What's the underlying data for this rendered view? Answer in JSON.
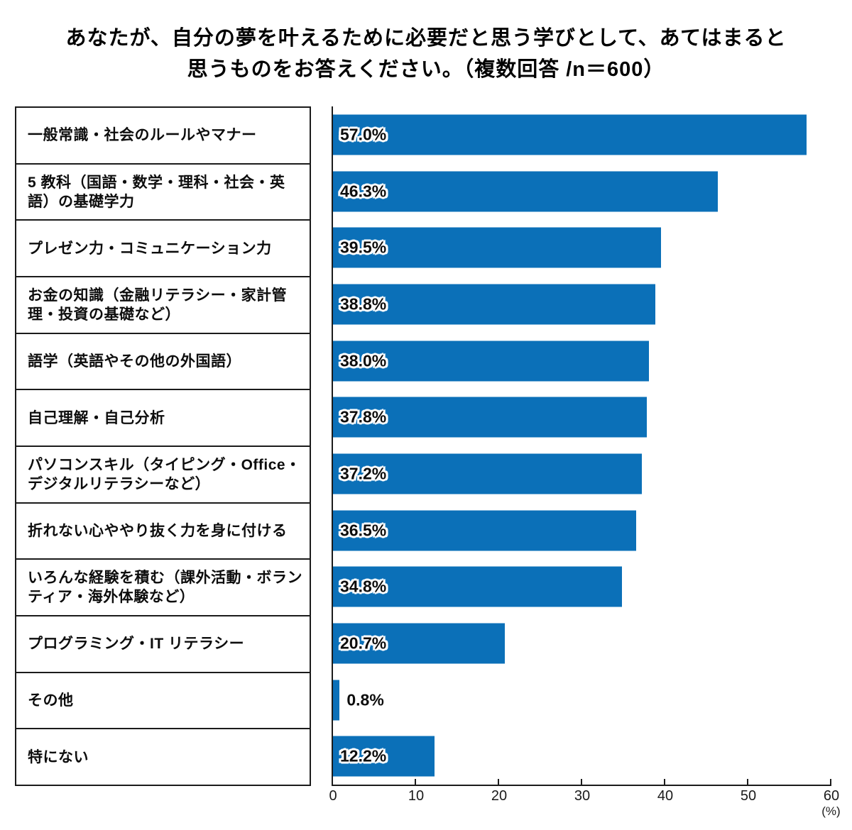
{
  "title": {
    "line1": "あなたが、自分の夢を叶えるために必要だと思う学びとして、あてはまると",
    "line2": "思うものをお答えください。（複数回答 /n＝600）"
  },
  "chart_data": {
    "type": "bar",
    "orientation": "horizontal",
    "title": "あなたが、自分の夢を叶えるために必要だと思う学びとして、あてはまると思うものをお答えください。（複数回答 /n＝600）",
    "sample_note": "複数回答 /n＝600",
    "categories": [
      "一般常識・社会のルールやマナー",
      "5 教科（国語・数学・理科・社会・英語）の基礎学力",
      "プレゼン力・コミュニケーション力",
      "お金の知識（金融リテラシー・家計管理・投資の基礎など）",
      "語学（英語やその他の外国語）",
      "自己理解・自己分析",
      "パソコンスキル（タイピング・Office・デジタルリテラシーなど）",
      "折れない心ややり抜く力を身に付ける",
      "いろんな経験を積む（課外活動・ボランティア・海外体験など）",
      "プログラミング・IT リテラシー",
      "その他",
      "特にない"
    ],
    "values": [
      57.0,
      46.3,
      39.5,
      38.8,
      38.0,
      37.8,
      37.2,
      36.5,
      34.8,
      20.7,
      0.8,
      12.2
    ],
    "value_labels": [
      "57.0%",
      "46.3%",
      "39.5%",
      "38.8%",
      "38.0%",
      "37.8%",
      "37.2%",
      "36.5%",
      "34.8%",
      "20.7%",
      "0.8%",
      "12.2%"
    ],
    "xlim": [
      0,
      60
    ],
    "x_ticks": [
      0,
      10,
      20,
      30,
      40,
      50,
      60
    ],
    "x_unit_label": "(%)",
    "bar_color": "#0b70b8",
    "grid": false,
    "legend_position": "none"
  }
}
